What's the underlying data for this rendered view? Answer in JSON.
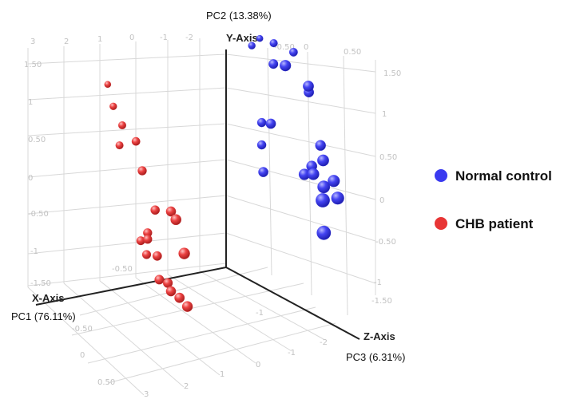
{
  "chart_data": {
    "type": "scatter",
    "projection": "3d",
    "axes": {
      "x": {
        "title": "X-Axis",
        "pc_label": "PC1 (76.11%)",
        "ticks": [
          "-1.50",
          "-1",
          "-0.50",
          "0",
          "0.50",
          "1",
          "1.50"
        ]
      },
      "y": {
        "title": "Y-Axis",
        "pc_label": "PC2 (13.38%)",
        "ticks": [
          "1.50",
          "1",
          "0.50",
          "0",
          "-0.50",
          "-1",
          "-1.50"
        ]
      },
      "z": {
        "title": "Z-Axis",
        "pc_label": "PC3 (6.31%)",
        "ticks": [
          "0.50",
          "0",
          "-0.50",
          "-1",
          "-1.50",
          "-2",
          "-2.50",
          "3",
          "2",
          "1",
          "0",
          "-1",
          "-2"
        ]
      }
    },
    "series": [
      {
        "name": "Normal control",
        "color": "#3a3af0",
        "points": [
          {
            "x": -0.9,
            "y": 1.45,
            "z": -0.5
          },
          {
            "x": -1.4,
            "y": 0.95,
            "z": -0.3
          },
          {
            "x": -1.6,
            "y": 0.7,
            "z": 0.2
          },
          {
            "x": -1.1,
            "y": 1.2,
            "z": 0.6
          },
          {
            "x": -1.7,
            "y": 1.1,
            "z": 1.2
          },
          {
            "x": -1.45,
            "y": 1.25,
            "z": 1.5
          },
          {
            "x": -1.2,
            "y": 1.2,
            "z": 1.9
          },
          {
            "x": -1.5,
            "y": 1.15,
            "z": 2.3
          },
          {
            "x": -0.9,
            "y": 0.4,
            "z": 0.2
          },
          {
            "x": -1.0,
            "y": 0.25,
            "z": 0.9
          },
          {
            "x": -1.0,
            "y": -0.1,
            "z": 0.9
          },
          {
            "x": -0.8,
            "y": -0.35,
            "z": 0.3
          },
          {
            "x": -1.7,
            "y": -0.1,
            "z": -0.1
          },
          {
            "x": -1.5,
            "y": -0.35,
            "z": -0.2
          },
          {
            "x": -1.25,
            "y": -0.35,
            "z": -0.5
          },
          {
            "x": -1.5,
            "y": -0.15,
            "z": -0.75
          },
          {
            "x": -1.3,
            "y": -0.3,
            "z": -0.8
          },
          {
            "x": -1.6,
            "y": -0.45,
            "z": -1.0
          },
          {
            "x": -1.3,
            "y": -0.4,
            "z": -1.3
          },
          {
            "x": -1.5,
            "y": -0.6,
            "z": -1.45
          },
          {
            "x": -0.9,
            "y": -0.3,
            "z": -2.3
          },
          {
            "x": -0.9,
            "y": -0.8,
            "z": -2.35
          }
        ]
      },
      {
        "name": "CHB patient",
        "color": "#e83535",
        "points": [
          {
            "x": 1.3,
            "y": 1.2,
            "z": 2.3
          },
          {
            "x": 1.35,
            "y": 0.95,
            "z": 1.9
          },
          {
            "x": 1.3,
            "y": 0.7,
            "z": 1.6
          },
          {
            "x": 1.2,
            "y": 0.5,
            "z": 1.2
          },
          {
            "x": 1.35,
            "y": 0.4,
            "z": 1.6
          },
          {
            "x": 1.2,
            "y": 0.1,
            "z": 0.9
          },
          {
            "x": 1.0,
            "y": -0.5,
            "z": -0.2
          },
          {
            "x": 0.9,
            "y": -0.5,
            "z": 0.3
          },
          {
            "x": 1.0,
            "y": -0.55,
            "z": 0.8
          },
          {
            "x": 1.0,
            "y": -0.95,
            "z": -0.6
          },
          {
            "x": 1.1,
            "y": -0.9,
            "z": 0.9
          },
          {
            "x": 1.1,
            "y": -1.0,
            "z": 0.9
          },
          {
            "x": 1.15,
            "y": -1.05,
            "z": 1.1
          },
          {
            "x": 1.1,
            "y": -1.25,
            "z": 0.95
          },
          {
            "x": 1.0,
            "y": -1.25,
            "z": 0.7
          },
          {
            "x": 1.0,
            "y": -1.6,
            "z": 0.6
          },
          {
            "x": 0.9,
            "y": -1.65,
            "z": 0.45
          },
          {
            "x": 0.9,
            "y": -1.75,
            "z": 0.3
          },
          {
            "x": 0.8,
            "y": -1.85,
            "z": 0.15
          },
          {
            "x": 0.75,
            "y": -1.95,
            "z": -0.1
          }
        ]
      }
    ],
    "legend": {
      "placement": "right",
      "entries": [
        "Normal control",
        "CHB patient"
      ]
    },
    "grid": true
  }
}
